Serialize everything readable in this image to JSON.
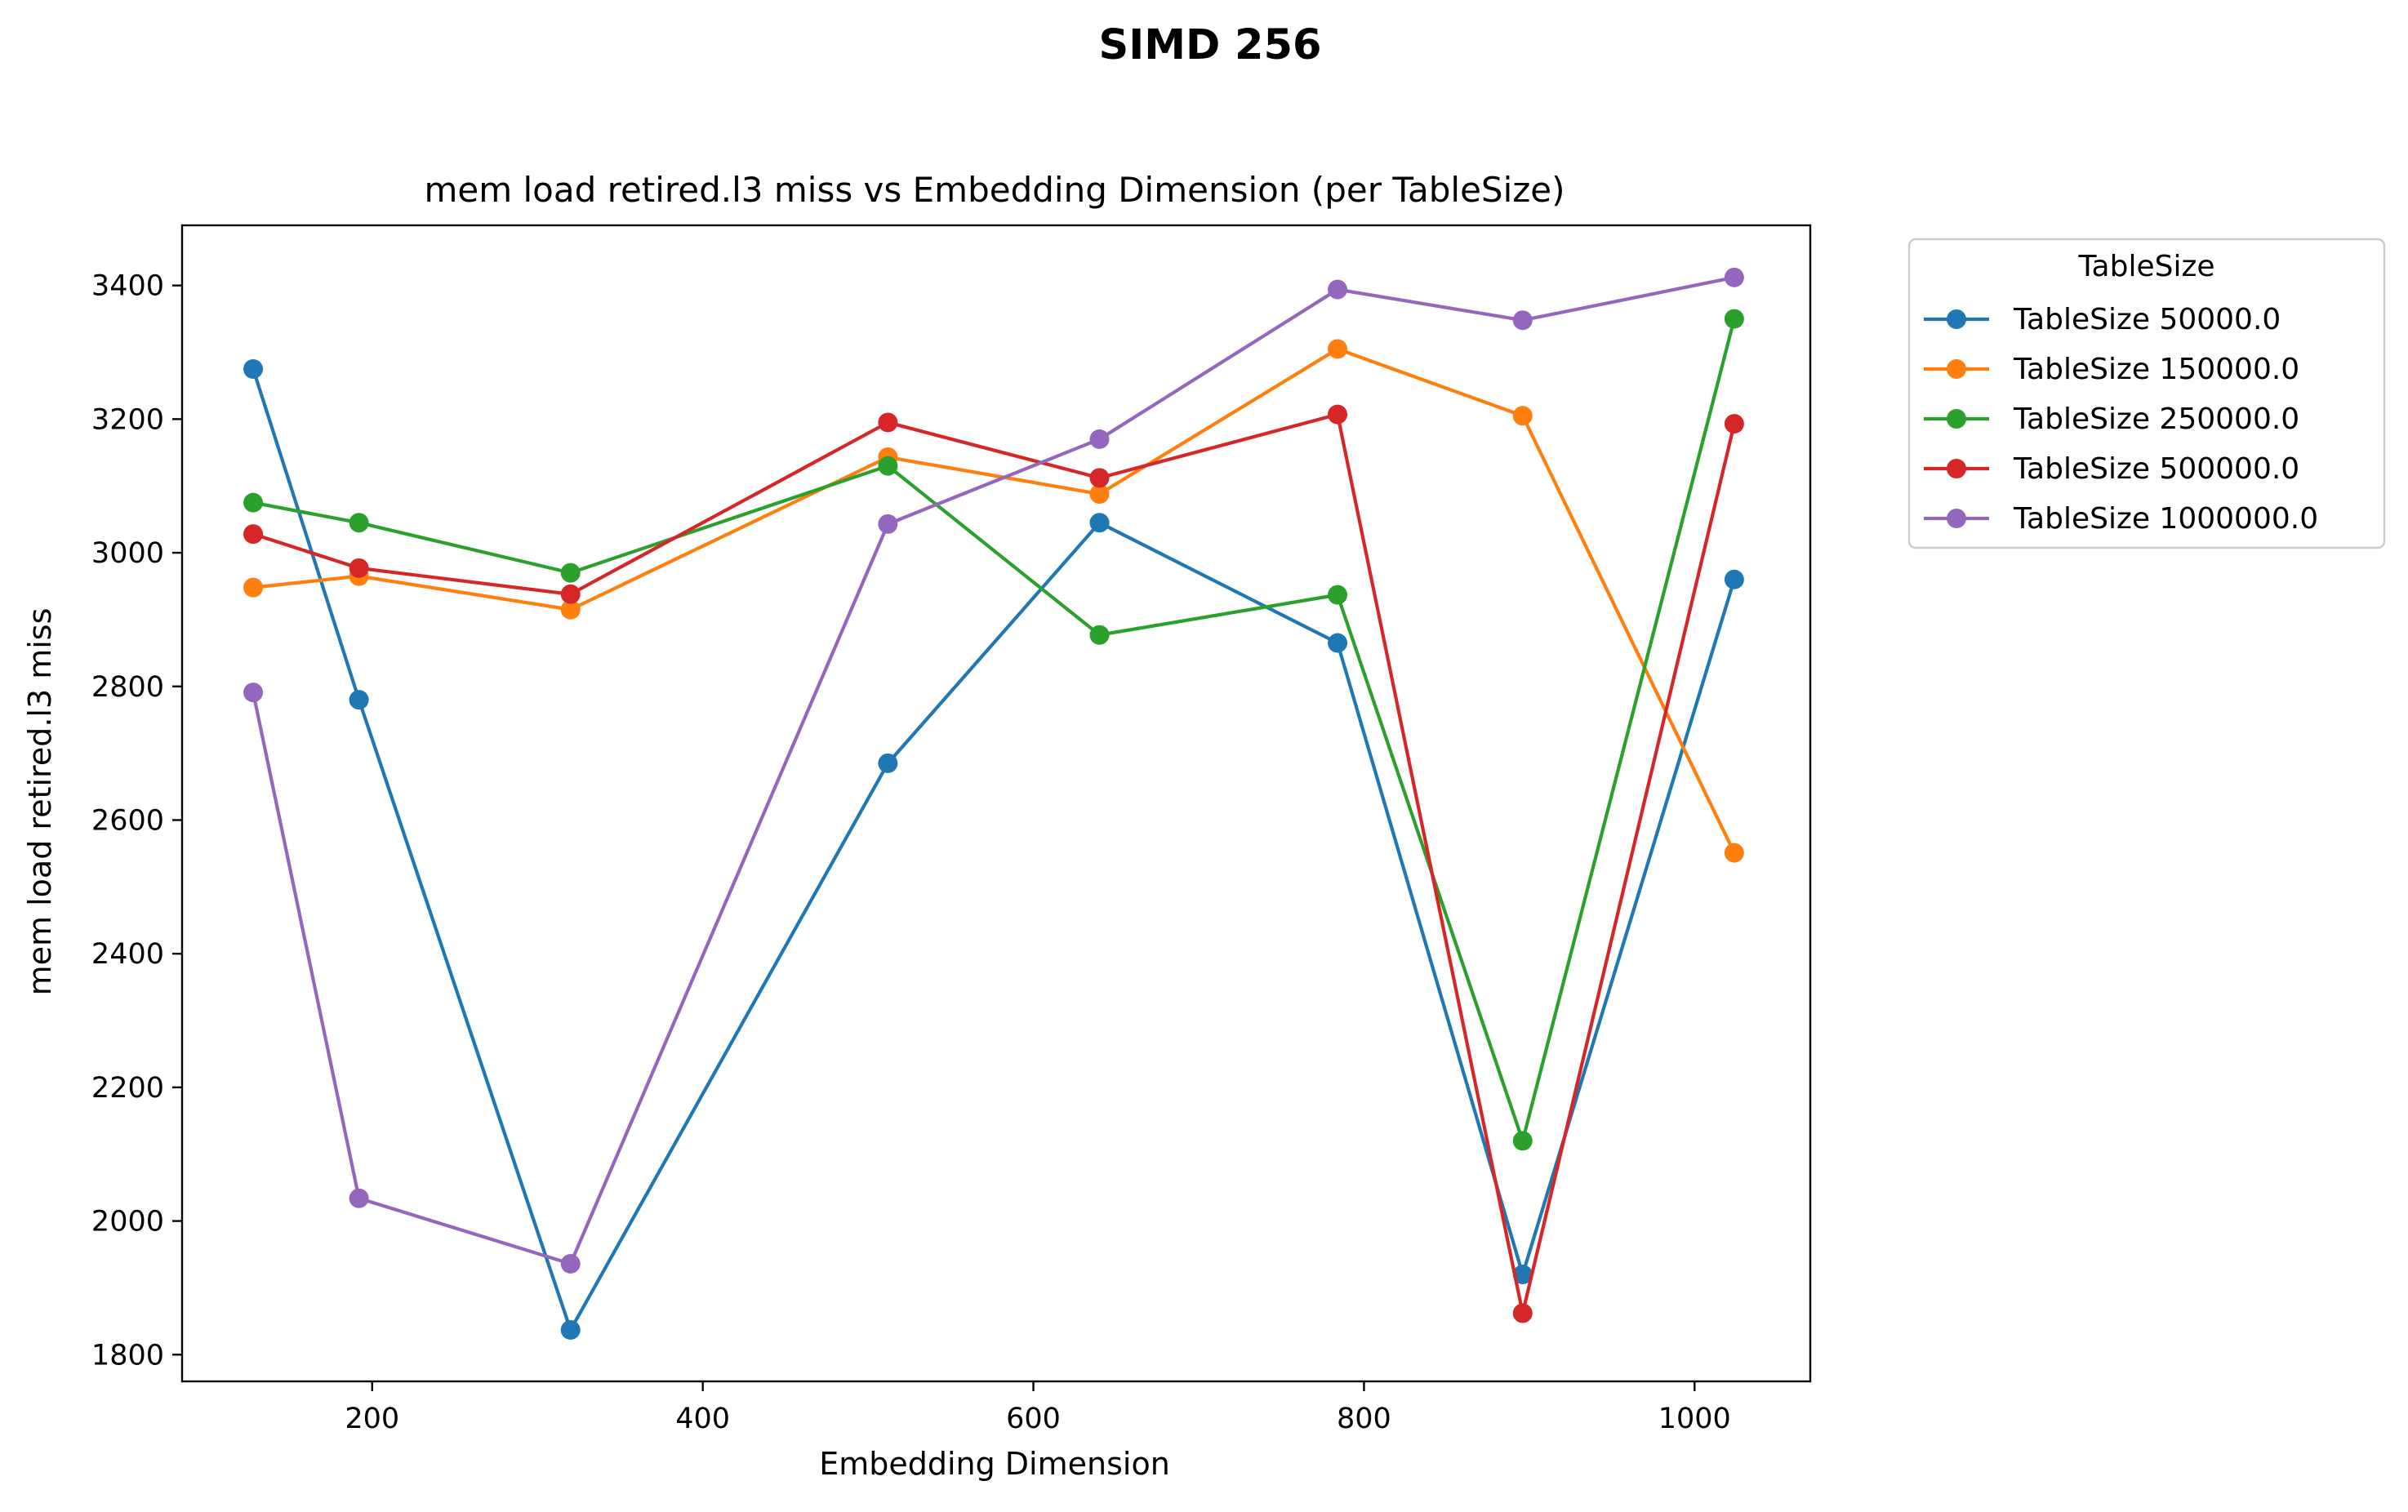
{
  "suptitle": "SIMD 256",
  "chart_data": {
    "type": "line",
    "title": "mem load retired.l3 miss vs Embedding Dimension (per TableSize)",
    "xlabel": "Embedding Dimension",
    "ylabel": "mem load retired.l3 miss",
    "xlim": [
      85,
      1070
    ],
    "ylim": [
      1760,
      3490
    ],
    "xticks": [
      200,
      400,
      600,
      800,
      1000
    ],
    "yticks": [
      1800,
      2000,
      2200,
      2400,
      2600,
      2800,
      3000,
      3200,
      3400
    ],
    "grid": false,
    "legend": {
      "title": "TableSize",
      "placement": "outside-top-right"
    },
    "x": [
      128,
      192,
      320,
      512,
      640,
      784,
      896,
      1024
    ],
    "series": [
      {
        "name": "TableSize 50000.0",
        "color": "#1f77b4",
        "values": [
          3275,
          2780,
          1837,
          2685,
          3045,
          2865,
          1920,
          2960
        ]
      },
      {
        "name": "TableSize 150000.0",
        "color": "#ff7f0e",
        "values": [
          2948,
          2965,
          2915,
          3143,
          3088,
          3305,
          3205,
          2551
        ]
      },
      {
        "name": "TableSize 250000.0",
        "color": "#2ca02c",
        "values": [
          3075,
          3045,
          2970,
          3130,
          2877,
          2937,
          2120,
          3350
        ]
      },
      {
        "name": "TableSize 500000.0",
        "color": "#d62728",
        "values": [
          3028,
          2977,
          2938,
          3195,
          3112,
          3207,
          1862,
          3193
        ]
      },
      {
        "name": "TableSize 1000000.0",
        "color": "#9467bd",
        "values": [
          2791,
          2034,
          1936,
          3043,
          3170,
          3394,
          3348,
          3412
        ]
      }
    ]
  }
}
